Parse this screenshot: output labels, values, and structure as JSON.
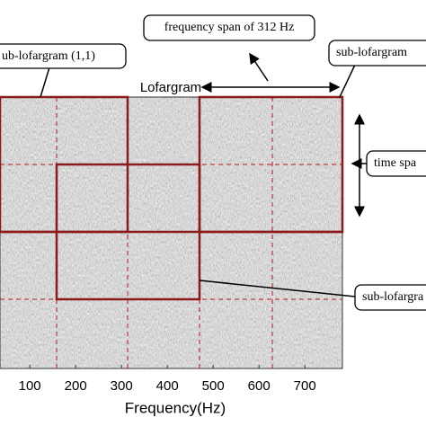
{
  "title": "Lofargram",
  "x_axis": {
    "label": "Frequency(Hz)",
    "ticks": [
      100,
      200,
      300,
      400,
      500,
      600,
      700
    ],
    "xlim": [
      35,
      782
    ]
  },
  "annotations": {
    "sub_1_1": "ub-lofargram  (1,1)",
    "frequency_span": "frequency span of 312 Hz",
    "sub_top_right": "sub-lofargram",
    "time_span": "time spa",
    "sub_bottom": "sub-lofargra"
  }
}
